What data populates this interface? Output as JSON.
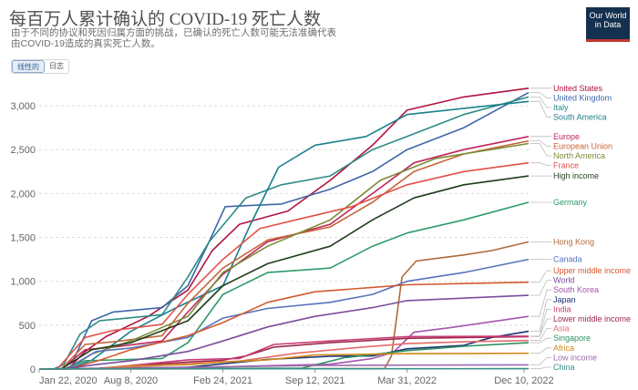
{
  "title": "每百万人累计确认的 COVID-19 死亡人数",
  "subtitle_line1": "由于不同的协议和死因归属方面的挑战，已确认的死亡人数可能无法准确代表",
  "subtitle_line2": "由COVID-19造成的真实死亡人数。",
  "logo_line1": "Our World",
  "logo_line2": "in Data",
  "scale_toggle": {
    "linear": "线性的",
    "log": "日志",
    "active": "linear"
  },
  "chart_data": {
    "type": "line",
    "title": "每百万人累计确认的 COVID-19 死亡人数",
    "xlabel": "",
    "ylabel": "",
    "x_ticks": [
      "Jan 22, 2020",
      "Aug 8, 2020",
      "Feb 24, 2021",
      "Sep 12, 2021",
      "Mar 31, 2022",
      "Dec 10, 2022"
    ],
    "x_domain": [
      "2020-01-22",
      "2022-12-20"
    ],
    "y_ticks": [
      0,
      500,
      1000,
      1500,
      2000,
      2500,
      3000
    ],
    "y_tick_labels": [
      "0",
      "500",
      "1,000",
      "1,500",
      "2,000",
      "2,500",
      "3,000"
    ],
    "ylim": [
      0,
      3250
    ],
    "grid": "horizontal",
    "legend": "right",
    "series": [
      {
        "name": "United States",
        "color": "#b0133f",
        "points": [
          [
            "2020-01-22",
            0
          ],
          [
            "2020-03-25",
            5
          ],
          [
            "2020-05-01",
            200
          ],
          [
            "2020-06-15",
            370
          ],
          [
            "2020-09-15",
            600
          ],
          [
            "2020-12-10",
            900
          ],
          [
            "2021-02-01",
            1350
          ],
          [
            "2021-04-01",
            1650
          ],
          [
            "2021-07-15",
            1800
          ],
          [
            "2021-10-15",
            2150
          ],
          [
            "2022-01-15",
            2550
          ],
          [
            "2022-03-31",
            2950
          ],
          [
            "2022-08-01",
            3100
          ],
          [
            "2022-12-20",
            3200
          ]
        ]
      },
      {
        "name": "United Kingdom",
        "color": "#3c66a8",
        "points": [
          [
            "2020-01-22",
            0
          ],
          [
            "2020-03-10",
            0
          ],
          [
            "2020-04-05",
            100
          ],
          [
            "2020-05-15",
            550
          ],
          [
            "2020-07-01",
            650
          ],
          [
            "2020-10-15",
            700
          ],
          [
            "2020-12-10",
            950
          ],
          [
            "2021-01-25",
            1450
          ],
          [
            "2021-03-01",
            1850
          ],
          [
            "2021-07-01",
            1880
          ],
          [
            "2021-10-15",
            2050
          ],
          [
            "2022-01-15",
            2250
          ],
          [
            "2022-03-31",
            2500
          ],
          [
            "2022-08-01",
            2750
          ],
          [
            "2022-12-20",
            3150
          ]
        ]
      },
      {
        "name": "Italy",
        "color": "#2d8b87",
        "points": [
          [
            "2020-01-22",
            0
          ],
          [
            "2020-02-22",
            0
          ],
          [
            "2020-03-15",
            50
          ],
          [
            "2020-04-20",
            400
          ],
          [
            "2020-06-01",
            550
          ],
          [
            "2020-10-15",
            620
          ],
          [
            "2020-12-10",
            1050
          ],
          [
            "2021-01-25",
            1450
          ],
          [
            "2021-04-15",
            1950
          ],
          [
            "2021-07-01",
            2100
          ],
          [
            "2021-10-15",
            2200
          ],
          [
            "2022-01-15",
            2500
          ],
          [
            "2022-03-31",
            2650
          ],
          [
            "2022-08-01",
            2900
          ],
          [
            "2022-12-20",
            3100
          ]
        ]
      },
      {
        "name": "South America",
        "color": "#1a7f8e",
        "points": [
          [
            "2020-01-22",
            0
          ],
          [
            "2020-03-25",
            0
          ],
          [
            "2020-05-15",
            100
          ],
          [
            "2020-08-08",
            430
          ],
          [
            "2020-11-15",
            700
          ],
          [
            "2021-02-24",
            950
          ],
          [
            "2021-04-25",
            1650
          ],
          [
            "2021-06-25",
            2300
          ],
          [
            "2021-09-12",
            2550
          ],
          [
            "2022-01-01",
            2650
          ],
          [
            "2022-03-31",
            2900
          ],
          [
            "2022-12-20",
            3050
          ]
        ]
      },
      {
        "name": "Europe",
        "color": "#c0265b",
        "points": [
          [
            "2020-01-22",
            0
          ],
          [
            "2020-03-10",
            0
          ],
          [
            "2020-05-01",
            220
          ],
          [
            "2020-07-01",
            250
          ],
          [
            "2020-10-15",
            320
          ],
          [
            "2020-12-10",
            650
          ],
          [
            "2021-02-24",
            1080
          ],
          [
            "2021-06-01",
            1450
          ],
          [
            "2021-10-15",
            1650
          ],
          [
            "2022-01-15",
            2000
          ],
          [
            "2022-04-15",
            2350
          ],
          [
            "2022-08-01",
            2500
          ],
          [
            "2022-12-20",
            2650
          ]
        ]
      },
      {
        "name": "European Union",
        "color": "#c4653a",
        "points": [
          [
            "2020-01-22",
            0
          ],
          [
            "2020-03-10",
            0
          ],
          [
            "2020-05-01",
            280
          ],
          [
            "2020-07-01",
            310
          ],
          [
            "2020-10-15",
            380
          ],
          [
            "2020-12-10",
            750
          ],
          [
            "2021-02-24",
            1150
          ],
          [
            "2021-06-01",
            1470
          ],
          [
            "2021-10-15",
            1620
          ],
          [
            "2022-01-15",
            1900
          ],
          [
            "2022-04-15",
            2250
          ],
          [
            "2022-08-01",
            2450
          ],
          [
            "2022-12-20",
            2600
          ]
        ]
      },
      {
        "name": "North America",
        "color": "#7a8c35",
        "points": [
          [
            "2020-01-22",
            0
          ],
          [
            "2020-03-25",
            0
          ],
          [
            "2020-05-15",
            170
          ],
          [
            "2020-08-08",
            320
          ],
          [
            "2020-12-10",
            600
          ],
          [
            "2021-02-24",
            1100
          ],
          [
            "2021-06-01",
            1400
          ],
          [
            "2021-10-15",
            1700
          ],
          [
            "2022-02-01",
            2150
          ],
          [
            "2022-06-01",
            2400
          ],
          [
            "2022-12-20",
            2570
          ]
        ]
      },
      {
        "name": "France",
        "color": "#e0524a",
        "points": [
          [
            "2020-01-22",
            0
          ],
          [
            "2020-03-01",
            0
          ],
          [
            "2020-05-01",
            360
          ],
          [
            "2020-07-01",
            440
          ],
          [
            "2020-10-15",
            510
          ],
          [
            "2020-12-10",
            850
          ],
          [
            "2021-02-24",
            1250
          ],
          [
            "2021-05-15",
            1600
          ],
          [
            "2021-08-01",
            1700
          ],
          [
            "2021-12-01",
            1850
          ],
          [
            "2022-03-31",
            2100
          ],
          [
            "2022-08-01",
            2250
          ],
          [
            "2022-12-20",
            2350
          ]
        ]
      },
      {
        "name": "High income",
        "color": "#1e3f1a",
        "points": [
          [
            "2020-01-22",
            0
          ],
          [
            "2020-03-10",
            0
          ],
          [
            "2020-05-15",
            220
          ],
          [
            "2020-08-08",
            300
          ],
          [
            "2020-12-10",
            550
          ],
          [
            "2021-02-24",
            950
          ],
          [
            "2021-06-01",
            1200
          ],
          [
            "2021-10-15",
            1400
          ],
          [
            "2022-01-15",
            1700
          ],
          [
            "2022-04-15",
            1950
          ],
          [
            "2022-08-01",
            2100
          ],
          [
            "2022-12-20",
            2200
          ]
        ]
      },
      {
        "name": "Germany",
        "color": "#2f9a6b",
        "points": [
          [
            "2020-01-22",
            0
          ],
          [
            "2020-03-15",
            0
          ],
          [
            "2020-05-01",
            95
          ],
          [
            "2020-10-15",
            120
          ],
          [
            "2020-12-10",
            300
          ],
          [
            "2021-02-24",
            850
          ],
          [
            "2021-06-01",
            1100
          ],
          [
            "2021-10-15",
            1150
          ],
          [
            "2022-01-15",
            1400
          ],
          [
            "2022-03-31",
            1550
          ],
          [
            "2022-08-01",
            1700
          ],
          [
            "2022-12-20",
            1900
          ]
        ]
      },
      {
        "name": "Hong Kong",
        "color": "#b06a3c",
        "points": [
          [
            "2020-01-22",
            0
          ],
          [
            "2022-02-10",
            5
          ],
          [
            "2022-02-25",
            150
          ],
          [
            "2022-03-20",
            1050
          ],
          [
            "2022-04-20",
            1230
          ],
          [
            "2022-06-01",
            1260
          ],
          [
            "2022-08-01",
            1300
          ],
          [
            "2022-10-01",
            1350
          ],
          [
            "2022-12-20",
            1450
          ]
        ]
      },
      {
        "name": "Canada",
        "color": "#5773b9",
        "points": [
          [
            "2020-01-22",
            0
          ],
          [
            "2020-03-20",
            0
          ],
          [
            "2020-05-25",
            200
          ],
          [
            "2020-08-08",
            240
          ],
          [
            "2020-12-10",
            360
          ],
          [
            "2021-02-24",
            580
          ],
          [
            "2021-06-01",
            690
          ],
          [
            "2021-10-15",
            760
          ],
          [
            "2022-01-15",
            850
          ],
          [
            "2022-03-31",
            1000
          ],
          [
            "2022-08-01",
            1100
          ],
          [
            "2022-12-20",
            1250
          ]
        ]
      },
      {
        "name": "Upper middle income",
        "color": "#d45a30",
        "points": [
          [
            "2020-01-22",
            0
          ],
          [
            "2020-03-25",
            0
          ],
          [
            "2020-06-01",
            100
          ],
          [
            "2020-08-08",
            220
          ],
          [
            "2020-12-10",
            380
          ],
          [
            "2021-02-24",
            530
          ],
          [
            "2021-06-01",
            760
          ],
          [
            "2021-09-12",
            880
          ],
          [
            "2022-01-15",
            930
          ],
          [
            "2022-03-31",
            960
          ],
          [
            "2022-12-20",
            990
          ]
        ]
      },
      {
        "name": "World",
        "color": "#7b4c9c",
        "points": [
          [
            "2020-01-22",
            0
          ],
          [
            "2020-03-10",
            0
          ],
          [
            "2020-06-01",
            55
          ],
          [
            "2020-08-08",
            95
          ],
          [
            "2020-12-10",
            200
          ],
          [
            "2021-02-24",
            320
          ],
          [
            "2021-06-01",
            480
          ],
          [
            "2021-09-12",
            600
          ],
          [
            "2022-01-15",
            700
          ],
          [
            "2022-03-31",
            780
          ],
          [
            "2022-12-20",
            840
          ]
        ]
      },
      {
        "name": "South Korea",
        "color": "#a653b0",
        "points": [
          [
            "2020-01-22",
            0
          ],
          [
            "2021-01-01",
            20
          ],
          [
            "2021-10-15",
            55
          ],
          [
            "2022-01-15",
            120
          ],
          [
            "2022-03-01",
            190
          ],
          [
            "2022-04-15",
            420
          ],
          [
            "2022-07-01",
            470
          ],
          [
            "2022-12-20",
            600
          ]
        ]
      },
      {
        "name": "Japan",
        "color": "#1b3575",
        "points": [
          [
            "2020-01-22",
            0
          ],
          [
            "2020-12-10",
            20
          ],
          [
            "2021-06-01",
            110
          ],
          [
            "2021-10-15",
            145
          ],
          [
            "2022-01-15",
            150
          ],
          [
            "2022-03-31",
            230
          ],
          [
            "2022-08-01",
            270
          ],
          [
            "2022-10-01",
            360
          ],
          [
            "2022-12-20",
            430
          ]
        ]
      },
      {
        "name": "Lower middle income",
        "color": "#9a2a4a",
        "points": [
          [
            "2020-01-22",
            0
          ],
          [
            "2020-06-01",
            10
          ],
          [
            "2020-12-10",
            80
          ],
          [
            "2021-02-24",
            100
          ],
          [
            "2021-04-15",
            150
          ],
          [
            "2021-06-15",
            250
          ],
          [
            "2021-10-15",
            300
          ],
          [
            "2022-03-31",
            350
          ],
          [
            "2022-12-20",
            370
          ]
        ]
      },
      {
        "name": "India",
        "color": "#c93a76",
        "points": [
          [
            "2020-01-22",
            0
          ],
          [
            "2020-06-01",
            5
          ],
          [
            "2020-12-10",
            105
          ],
          [
            "2021-04-01",
            120
          ],
          [
            "2021-06-15",
            280
          ],
          [
            "2021-10-15",
            320
          ],
          [
            "2022-03-31",
            370
          ],
          [
            "2022-12-20",
            375
          ]
        ]
      },
      {
        "name": "Asia",
        "color": "#e36b6b",
        "points": [
          [
            "2020-01-22",
            0
          ],
          [
            "2020-06-01",
            5
          ],
          [
            "2020-12-10",
            60
          ],
          [
            "2021-04-01",
            90
          ],
          [
            "2021-08-01",
            180
          ],
          [
            "2021-12-01",
            240
          ],
          [
            "2022-03-31",
            290
          ],
          [
            "2022-08-01",
            310
          ],
          [
            "2022-12-20",
            325
          ]
        ]
      },
      {
        "name": "Singapore",
        "color": "#2c8f5e",
        "points": [
          [
            "2020-01-22",
            0
          ],
          [
            "2021-08-15",
            10
          ],
          [
            "2021-11-15",
            130
          ],
          [
            "2022-03-31",
            210
          ],
          [
            "2022-08-01",
            260
          ],
          [
            "2022-12-20",
            300
          ]
        ]
      },
      {
        "name": "Africa",
        "color": "#d08a1d",
        "points": [
          [
            "2020-01-22",
            0
          ],
          [
            "2020-06-01",
            5
          ],
          [
            "2020-08-08",
            35
          ],
          [
            "2020-12-10",
            50
          ],
          [
            "2021-02-24",
            80
          ],
          [
            "2021-06-01",
            105
          ],
          [
            "2021-09-12",
            160
          ],
          [
            "2022-03-31",
            175
          ],
          [
            "2022-12-20",
            180
          ]
        ]
      },
      {
        "name": "Low income",
        "color": "#9b6bb0",
        "points": [
          [
            "2020-01-22",
            0
          ],
          [
            "2020-08-08",
            10
          ],
          [
            "2021-02-24",
            25
          ],
          [
            "2021-09-12",
            40
          ],
          [
            "2022-03-31",
            45
          ],
          [
            "2022-12-20",
            48
          ]
        ]
      },
      {
        "name": "China",
        "color": "#3a8f8a",
        "points": [
          [
            "2020-01-22",
            0
          ],
          [
            "2020-02-20",
            2
          ],
          [
            "2020-04-20",
            3
          ],
          [
            "2022-12-20",
            4
          ]
        ]
      }
    ]
  }
}
